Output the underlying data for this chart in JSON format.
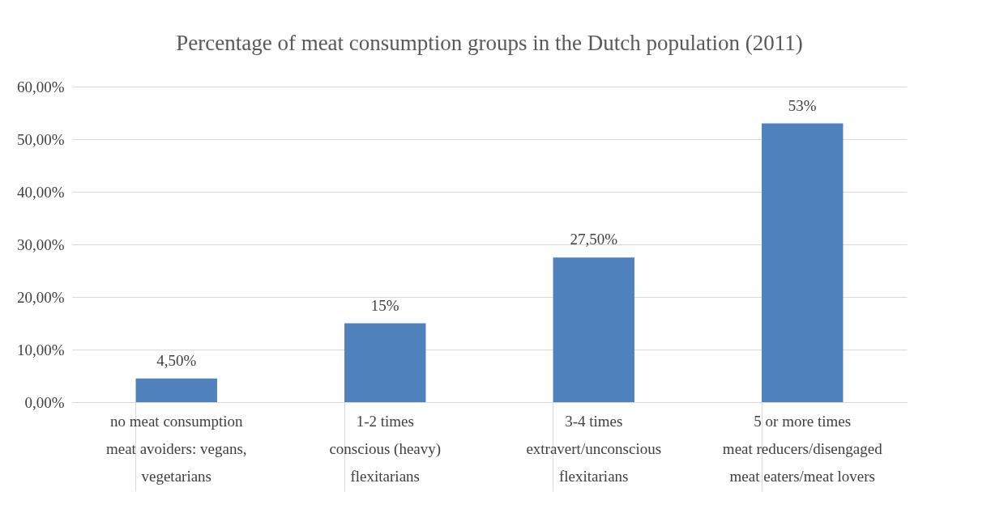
{
  "chart_data": {
    "type": "bar",
    "title": "Percentage of meat consumption groups in the Dutch population (2011)",
    "categories": [
      "no meat consumption\nmeat avoiders: vegans,\nvegetarians",
      "1-2 times\nconscious (heavy)\nflexitarians",
      "3-4 times\nextravert/unconscious\nflexitarians",
      "5 or more times\nmeat reducers/disengaged\nmeat eaters/meat lovers"
    ],
    "values": [
      4.5,
      15,
      27.5,
      53
    ],
    "value_labels": [
      "4,50%",
      "15%",
      "27,50%",
      "53%"
    ],
    "color": "#4f81bd",
    "ylim": [
      0,
      60
    ],
    "yticks": [
      {
        "value": 0,
        "label": "0,00%"
      },
      {
        "value": 10,
        "label": "10,00%"
      },
      {
        "value": 20,
        "label": "20,00%"
      },
      {
        "value": 30,
        "label": "30,00%"
      },
      {
        "value": 40,
        "label": "40,00%"
      },
      {
        "value": 50,
        "label": "50,00%"
      },
      {
        "value": 60,
        "label": "60,00%"
      }
    ],
    "grid": "y"
  }
}
